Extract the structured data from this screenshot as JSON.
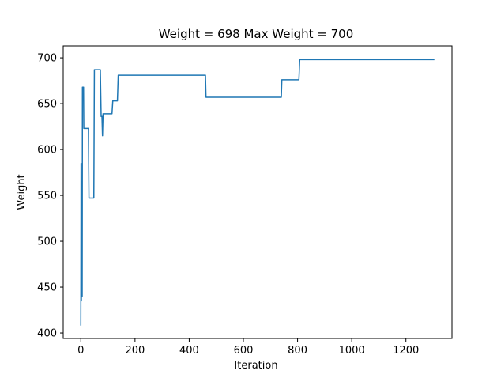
{
  "chart_data": {
    "type": "line",
    "title": "Weight = 698 Max Weight = 700",
    "xlabel": "Iteration",
    "ylabel": "Weight",
    "xlim": [
      -65,
      1370
    ],
    "ylim": [
      394,
      713
    ],
    "xticks": [
      0,
      200,
      400,
      600,
      800,
      1000,
      1200
    ],
    "yticks": [
      400,
      450,
      500,
      550,
      600,
      650,
      700
    ],
    "grid": false,
    "line_color": "#1f77b4",
    "series": [
      {
        "x": [
          0,
          1,
          2,
          3,
          4,
          5,
          6,
          10,
          11,
          13,
          15,
          28,
          30,
          32,
          48,
          50,
          52,
          72,
          75,
          78,
          80,
          82,
          84,
          115,
          118,
          135,
          138,
          460,
          462,
          740,
          742,
          805,
          808,
          1305
        ],
        "y": [
          408,
          585,
          435,
          500,
          560,
          440,
          668,
          668,
          623,
          623,
          623,
          623,
          547,
          547,
          547,
          687,
          687,
          687,
          636,
          636,
          615,
          639,
          639,
          639,
          653,
          653,
          681,
          681,
          657,
          657,
          676,
          676,
          698,
          698
        ]
      }
    ]
  }
}
